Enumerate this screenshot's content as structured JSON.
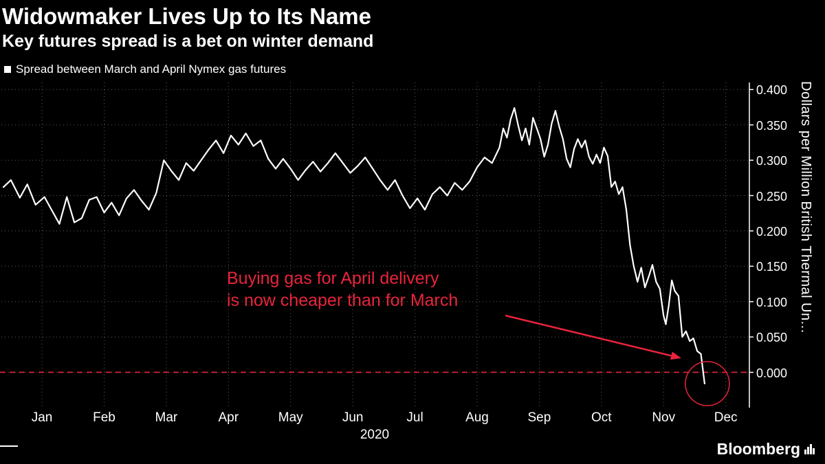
{
  "header": {
    "title": "Widowmaker Lives Up to Its Name",
    "subtitle": "Key futures spread is a bet on winter demand"
  },
  "legend": {
    "label": "Spread between March and April Nymex gas futures",
    "swatch_color": "#ffffff"
  },
  "annotation": {
    "text": "Buying gas for April delivery\nis now cheaper than for March",
    "color": "#e8243c"
  },
  "footer": {
    "brand": "Bloomberg"
  },
  "chart_data": {
    "type": "line",
    "title": "Widowmaker Lives Up to Its Name",
    "subtitle": "Key futures spread is a bet on winter demand",
    "legend": [
      "Spread between March and April Nymex gas futures"
    ],
    "legend_position": "top-left",
    "categories": [
      "Jan",
      "Feb",
      "Mar",
      "Apr",
      "May",
      "Jun",
      "Jul",
      "Aug",
      "Sep",
      "Oct",
      "Nov",
      "Dec"
    ],
    "x_axis_year": "2020",
    "ylabel": "Dollars per Million British Thermal Un...",
    "yticks": [
      0.4,
      0.35,
      0.3,
      0.25,
      0.2,
      0.15,
      0.1,
      0.05,
      0.0
    ],
    "ylim": [
      -0.05,
      0.41
    ],
    "grid": "dotted",
    "zero_line": {
      "value": 0.0,
      "style": "dashed",
      "color": "#e8243c"
    },
    "series": [
      {
        "name": "Spread between March and April Nymex gas futures",
        "color": "#ffffff",
        "x_unit": "year fraction (Jan-Dec 2020)",
        "points": [
          [
            0.0,
            0.262
          ],
          [
            0.01,
            0.272
          ],
          [
            0.022,
            0.247
          ],
          [
            0.032,
            0.266
          ],
          [
            0.043,
            0.237
          ],
          [
            0.055,
            0.248
          ],
          [
            0.065,
            0.229
          ],
          [
            0.075,
            0.21
          ],
          [
            0.085,
            0.248
          ],
          [
            0.095,
            0.212
          ],
          [
            0.105,
            0.218
          ],
          [
            0.115,
            0.244
          ],
          [
            0.125,
            0.248
          ],
          [
            0.135,
            0.226
          ],
          [
            0.145,
            0.24
          ],
          [
            0.155,
            0.222
          ],
          [
            0.165,
            0.246
          ],
          [
            0.175,
            0.258
          ],
          [
            0.185,
            0.243
          ],
          [
            0.195,
            0.23
          ],
          [
            0.205,
            0.254
          ],
          [
            0.215,
            0.3
          ],
          [
            0.225,
            0.285
          ],
          [
            0.235,
            0.272
          ],
          [
            0.245,
            0.296
          ],
          [
            0.255,
            0.285
          ],
          [
            0.265,
            0.3
          ],
          [
            0.275,
            0.315
          ],
          [
            0.285,
            0.328
          ],
          [
            0.295,
            0.31
          ],
          [
            0.305,
            0.335
          ],
          [
            0.315,
            0.322
          ],
          [
            0.325,
            0.338
          ],
          [
            0.335,
            0.32
          ],
          [
            0.345,
            0.328
          ],
          [
            0.355,
            0.302
          ],
          [
            0.365,
            0.288
          ],
          [
            0.375,
            0.302
          ],
          [
            0.385,
            0.288
          ],
          [
            0.395,
            0.272
          ],
          [
            0.405,
            0.286
          ],
          [
            0.415,
            0.298
          ],
          [
            0.425,
            0.284
          ],
          [
            0.435,
            0.296
          ],
          [
            0.445,
            0.31
          ],
          [
            0.455,
            0.296
          ],
          [
            0.465,
            0.282
          ],
          [
            0.475,
            0.292
          ],
          [
            0.485,
            0.304
          ],
          [
            0.495,
            0.288
          ],
          [
            0.505,
            0.272
          ],
          [
            0.515,
            0.258
          ],
          [
            0.525,
            0.272
          ],
          [
            0.535,
            0.25
          ],
          [
            0.545,
            0.232
          ],
          [
            0.555,
            0.246
          ],
          [
            0.565,
            0.23
          ],
          [
            0.575,
            0.252
          ],
          [
            0.585,
            0.262
          ],
          [
            0.595,
            0.25
          ],
          [
            0.605,
            0.268
          ],
          [
            0.615,
            0.258
          ],
          [
            0.625,
            0.27
          ],
          [
            0.635,
            0.29
          ],
          [
            0.645,
            0.304
          ],
          [
            0.655,
            0.296
          ],
          [
            0.665,
            0.318
          ],
          [
            0.67,
            0.345
          ],
          [
            0.675,
            0.332
          ],
          [
            0.68,
            0.358
          ],
          [
            0.685,
            0.374
          ],
          [
            0.69,
            0.35
          ],
          [
            0.695,
            0.328
          ],
          [
            0.7,
            0.345
          ],
          [
            0.705,
            0.322
          ],
          [
            0.71,
            0.36
          ],
          [
            0.715,
            0.345
          ],
          [
            0.72,
            0.33
          ],
          [
            0.725,
            0.305
          ],
          [
            0.73,
            0.322
          ],
          [
            0.735,
            0.352
          ],
          [
            0.74,
            0.37
          ],
          [
            0.745,
            0.348
          ],
          [
            0.75,
            0.33
          ],
          [
            0.755,
            0.302
          ],
          [
            0.76,
            0.29
          ],
          [
            0.765,
            0.316
          ],
          [
            0.77,
            0.33
          ],
          [
            0.775,
            0.318
          ],
          [
            0.78,
            0.328
          ],
          [
            0.785,
            0.305
          ],
          [
            0.79,
            0.295
          ],
          [
            0.795,
            0.308
          ],
          [
            0.8,
            0.296
          ],
          [
            0.805,
            0.318
          ],
          [
            0.81,
            0.306
          ],
          [
            0.815,
            0.262
          ],
          [
            0.82,
            0.27
          ],
          [
            0.825,
            0.252
          ],
          [
            0.83,
            0.262
          ],
          [
            0.835,
            0.23
          ],
          [
            0.84,
            0.18
          ],
          [
            0.845,
            0.15
          ],
          [
            0.85,
            0.128
          ],
          [
            0.855,
            0.148
          ],
          [
            0.86,
            0.12
          ],
          [
            0.865,
            0.135
          ],
          [
            0.87,
            0.152
          ],
          [
            0.875,
            0.128
          ],
          [
            0.88,
            0.118
          ],
          [
            0.885,
            0.08
          ],
          [
            0.888,
            0.068
          ],
          [
            0.892,
            0.095
          ],
          [
            0.896,
            0.13
          ],
          [
            0.9,
            0.115
          ],
          [
            0.905,
            0.108
          ],
          [
            0.91,
            0.05
          ],
          [
            0.915,
            0.058
          ],
          [
            0.92,
            0.044
          ],
          [
            0.925,
            0.048
          ],
          [
            0.93,
            0.03
          ],
          [
            0.935,
            0.026
          ],
          [
            0.94,
            -0.016
          ]
        ]
      }
    ]
  }
}
